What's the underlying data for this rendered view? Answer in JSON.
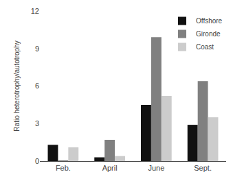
{
  "chart_data": {
    "type": "bar",
    "categories": [
      "Feb.",
      "April",
      "June",
      "Sept."
    ],
    "series": [
      {
        "name": "Offshore",
        "color": "#111111",
        "values": [
          1.3,
          0.3,
          4.5,
          2.9
        ]
      },
      {
        "name": "Gironde",
        "color": "#808080",
        "values": [
          0.05,
          1.7,
          9.9,
          6.4
        ]
      },
      {
        "name": "Coast",
        "color": "#cccccc",
        "values": [
          1.1,
          0.4,
          5.2,
          3.5
        ]
      }
    ],
    "ylabel": "Ratio heterotrophy/autotrophy",
    "ylim": [
      0,
      12
    ],
    "yticks": [
      0,
      3,
      6,
      9,
      12
    ],
    "grid": false,
    "legend": "upper right"
  }
}
